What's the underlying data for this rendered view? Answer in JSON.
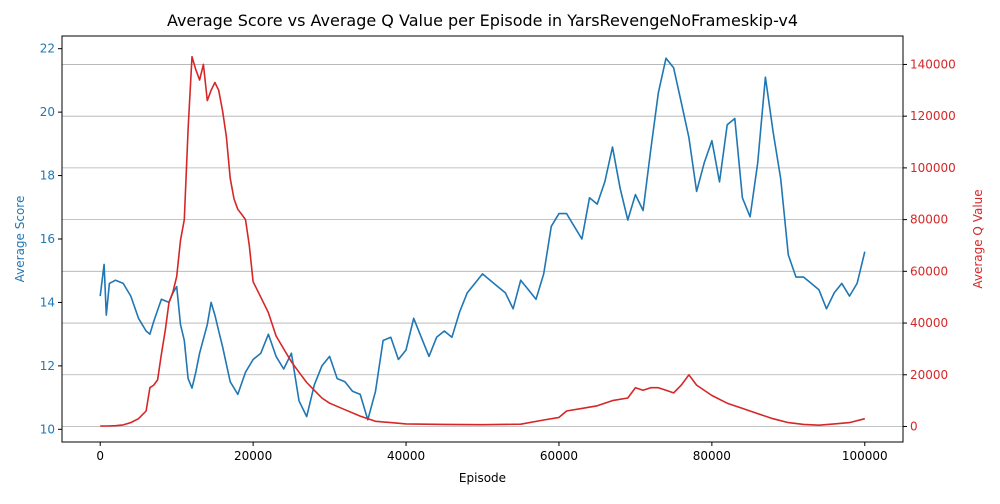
{
  "chart_data": {
    "type": "line",
    "title": "Average Score vs Average Q Value per Episode in YarsRevengeNoFrameskip-v4",
    "xlabel": "Episode",
    "ylabel_left": "Average Score",
    "ylabel_right": "Average Q Value",
    "xlim": [
      -5000,
      105000
    ],
    "ylim_left": [
      9.6,
      22.4
    ],
    "ylim_right": [
      -6000,
      151000
    ],
    "x_ticks": [
      0,
      20000,
      40000,
      60000,
      80000,
      100000
    ],
    "y_ticks_left": [
      10,
      12,
      14,
      16,
      18,
      20,
      22
    ],
    "y_ticks_right": [
      0,
      20000,
      40000,
      60000,
      80000,
      100000,
      120000,
      140000
    ],
    "grid": "horizontal (right axis)",
    "colors": {
      "score": "#1f77b4",
      "q": "#d62728",
      "grid": "#b0b0b0",
      "text": "#000000"
    },
    "series": [
      {
        "axis": "left",
        "color": "#1f77b4",
        "x": [
          0,
          500,
          800,
          1200,
          2000,
          3000,
          4000,
          5000,
          6000,
          6500,
          7000,
          8000,
          9000,
          9500,
          10000,
          10500,
          11000,
          11500,
          12000,
          12500,
          13000,
          14000,
          14500,
          15000,
          15500,
          16000,
          17000,
          18000,
          19000,
          20000,
          21000,
          22000,
          23000,
          24000,
          25000,
          26000,
          27000,
          28000,
          29000,
          30000,
          31000,
          32000,
          33000,
          34000,
          35000,
          36000,
          37000,
          38000,
          39000,
          40000,
          41000,
          42000,
          43000,
          44000,
          45000,
          46000,
          47000,
          48000,
          49000,
          50000,
          51000,
          52000,
          53000,
          54000,
          55000,
          56000,
          57000,
          58000,
          59000,
          60000,
          61000,
          62000,
          63000,
          64000,
          65000,
          66000,
          67000,
          68000,
          69000,
          70000,
          71000,
          72000,
          73000,
          74000,
          75000,
          76000,
          77000,
          78000,
          79000,
          80000,
          81000,
          82000,
          83000,
          84000,
          85000,
          86000,
          87000,
          88000,
          89000,
          90000,
          91000,
          92000,
          93000,
          94000,
          95000,
          96000,
          97000,
          98000,
          99000,
          100000
        ],
        "values": [
          14.2,
          15.2,
          13.6,
          14.6,
          14.7,
          14.6,
          14.2,
          13.5,
          13.1,
          13.0,
          13.4,
          14.1,
          14.0,
          14.3,
          14.5,
          13.3,
          12.8,
          11.6,
          11.3,
          11.8,
          12.4,
          13.3,
          14.0,
          13.6,
          13.1,
          12.6,
          11.5,
          11.1,
          11.8,
          12.2,
          12.4,
          13.0,
          12.3,
          11.9,
          12.4,
          10.9,
          10.4,
          11.4,
          12.0,
          12.3,
          11.6,
          11.5,
          11.2,
          11.1,
          10.3,
          11.2,
          12.8,
          12.9,
          12.2,
          12.5,
          13.5,
          12.9,
          12.3,
          12.9,
          13.1,
          12.9,
          13.7,
          14.3,
          14.6,
          14.9,
          14.7,
          14.5,
          14.3,
          13.8,
          14.7,
          14.4,
          14.1,
          14.9,
          16.4,
          16.8,
          16.8,
          16.4,
          16.0,
          17.3,
          17.1,
          17.8,
          18.9,
          17.6,
          16.6,
          17.4,
          16.9,
          18.8,
          20.6,
          21.7,
          21.4,
          20.3,
          19.2,
          17.5,
          18.4,
          19.1,
          17.8,
          19.6,
          19.8,
          17.3,
          16.7,
          18.4,
          21.1,
          19.4,
          17.9,
          15.5,
          14.8,
          14.8,
          14.6,
          14.4,
          13.8,
          14.3,
          14.6,
          14.2,
          14.6,
          15.6
        ]
      },
      {
        "axis": "right",
        "color": "#d62728",
        "x": [
          0,
          1000,
          2000,
          3000,
          4000,
          5000,
          6000,
          6500,
          7000,
          7500,
          8000,
          8500,
          9000,
          9500,
          10000,
          10500,
          11000,
          11500,
          12000,
          12500,
          13000,
          13500,
          14000,
          14500,
          15000,
          15500,
          16000,
          16500,
          17000,
          17500,
          18000,
          18500,
          19000,
          19500,
          20000,
          21000,
          22000,
          23000,
          24000,
          25000,
          26000,
          27000,
          28000,
          29000,
          30000,
          32000,
          34000,
          36000,
          38000,
          40000,
          45000,
          50000,
          55000,
          58000,
          60000,
          61000,
          63000,
          65000,
          67000,
          69000,
          70000,
          71000,
          72000,
          73000,
          74000,
          75000,
          76000,
          77000,
          78000,
          80000,
          82000,
          84000,
          86000,
          88000,
          90000,
          92000,
          94000,
          96000,
          98000,
          100000
        ],
        "values": [
          200,
          200,
          300,
          600,
          1500,
          3000,
          6000,
          15000,
          16000,
          18000,
          28000,
          37000,
          48000,
          52000,
          58000,
          72000,
          80000,
          115000,
          143000,
          138000,
          134000,
          140000,
          126000,
          130000,
          133000,
          130000,
          122000,
          112000,
          96000,
          88000,
          84000,
          82000,
          80000,
          70000,
          56000,
          50000,
          44000,
          35000,
          30000,
          25000,
          21000,
          17000,
          14000,
          11000,
          9000,
          6500,
          4000,
          2000,
          1500,
          1000,
          800,
          700,
          900,
          2500,
          3500,
          6000,
          7000,
          8000,
          10000,
          11000,
          15000,
          14000,
          15000,
          15000,
          14000,
          13000,
          16000,
          20000,
          16000,
          12000,
          9000,
          7000,
          5000,
          3000,
          1500,
          800,
          500,
          1000,
          1500,
          3000
        ]
      }
    ]
  }
}
